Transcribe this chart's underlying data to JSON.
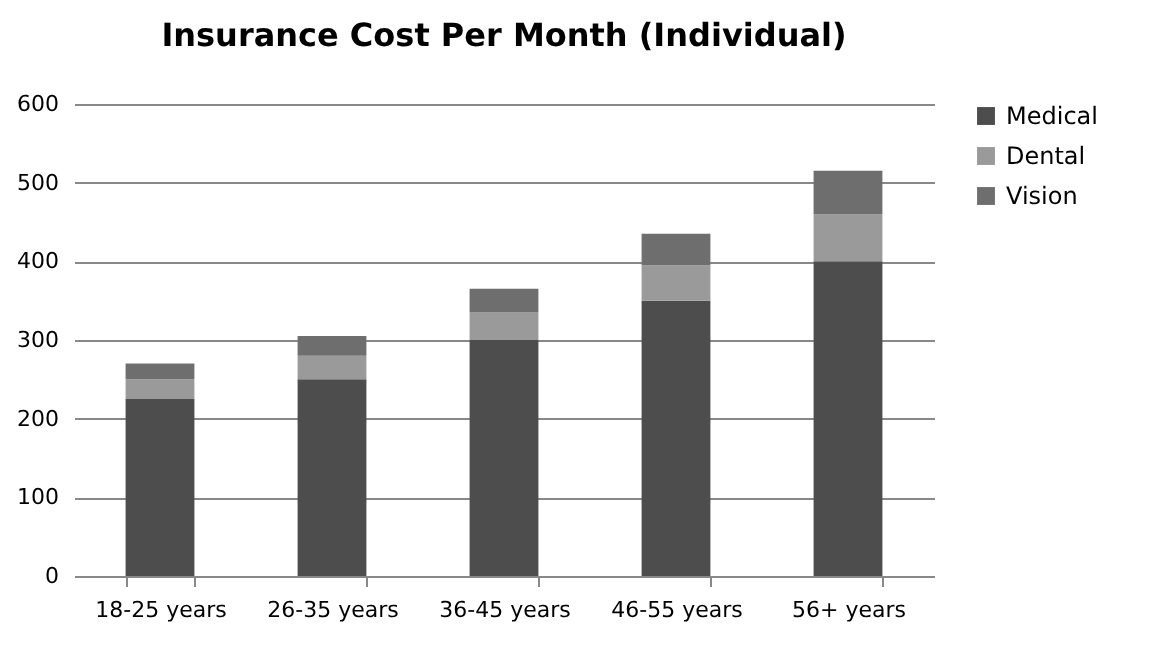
{
  "chart_data": {
    "type": "bar",
    "title": "Insurance Cost Per Month (Individual)",
    "categories": [
      "18-25 years",
      "26-35 years",
      "36-45 years",
      "46-55 years",
      "56+ years"
    ],
    "stacked": true,
    "series": [
      {
        "name": "Medical",
        "color": "#4d4d4d",
        "values": [
          225,
          250,
          300,
          350,
          400
        ]
      },
      {
        "name": "Dental",
        "color": "#9a9a9a",
        "values": [
          25,
          30,
          35,
          45,
          60
        ]
      },
      {
        "name": "Vision",
        "color": "#6e6e6e",
        "values": [
          20,
          25,
          30,
          40,
          55
        ]
      }
    ],
    "ylim": [
      0,
      600
    ],
    "yticks": [
      0,
      100,
      200,
      300,
      400,
      500,
      600
    ],
    "grid": "y",
    "legend": "right"
  }
}
